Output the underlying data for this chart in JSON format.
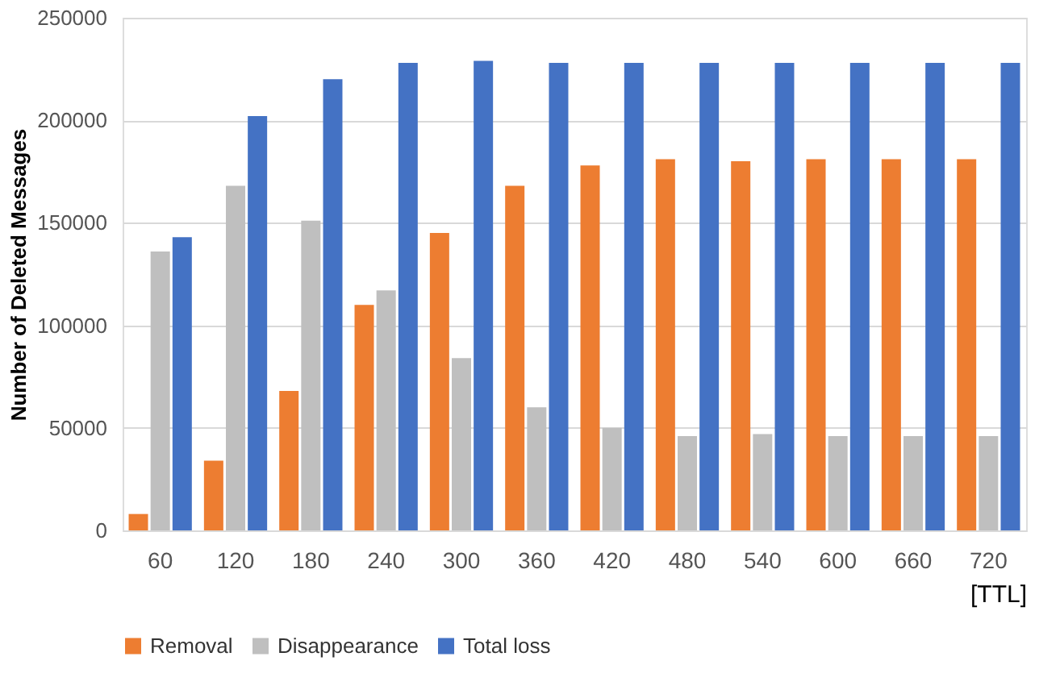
{
  "chart_data": {
    "type": "bar",
    "ylabel": "Number of Deleted Messages",
    "xlabel": "[TTL]",
    "categories": [
      "60",
      "120",
      "180",
      "240",
      "300",
      "360",
      "420",
      "480",
      "540",
      "600",
      "660",
      "720"
    ],
    "series": [
      {
        "name": "Removal",
        "color": "#ed7d31",
        "values": [
          8000,
          34000,
          68000,
          110000,
          145000,
          168000,
          178000,
          181000,
          180000,
          181000,
          181000,
          181000
        ]
      },
      {
        "name": "Disappearance",
        "color": "#bfbfbf",
        "values": [
          136000,
          168000,
          151000,
          117000,
          84000,
          60000,
          50000,
          46000,
          47000,
          46000,
          46000,
          46000
        ]
      },
      {
        "name": "Total loss",
        "color": "#4472c4",
        "values": [
          143000,
          202000,
          220000,
          228000,
          229000,
          228000,
          228000,
          228000,
          228000,
          228000,
          228000,
          228000
        ]
      }
    ],
    "ylim": [
      0,
      250000
    ],
    "yticks": [
      0,
      50000,
      100000,
      150000,
      200000,
      250000
    ],
    "grid": "y",
    "legend": "bottom"
  }
}
